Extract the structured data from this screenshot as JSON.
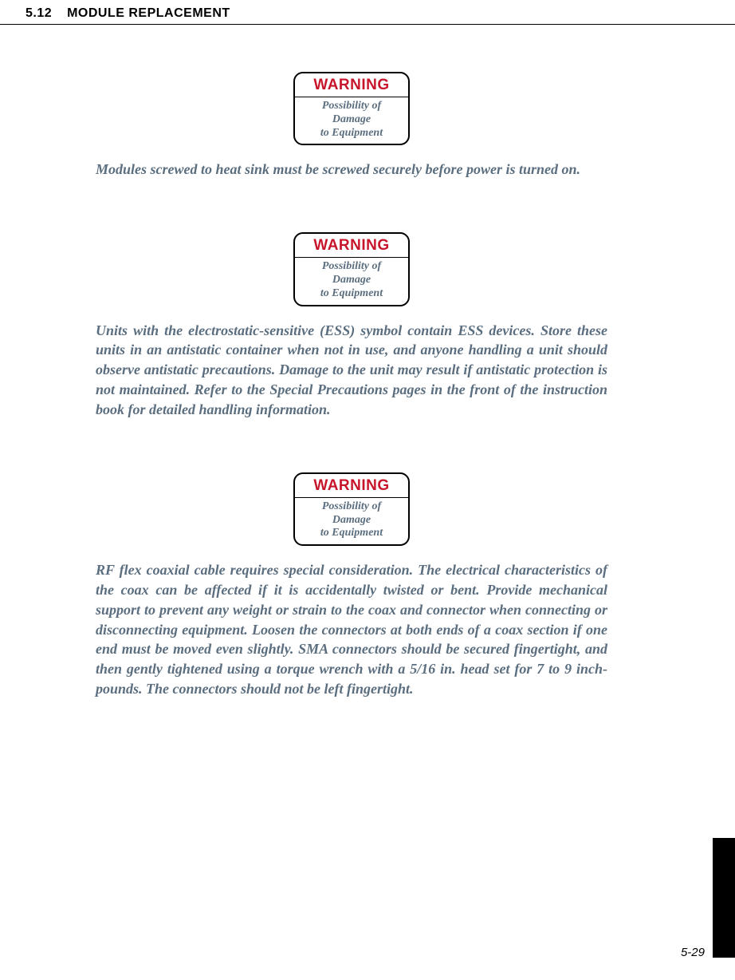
{
  "header": {
    "section_number": "5.12",
    "section_title": "MODULE REPLACEMENT",
    "fontsize": 16
  },
  "colors": {
    "text": "#000000",
    "warning_title": "#c7162b",
    "warning_body": "#5b6e7f",
    "paragraph": "#5b6e7f",
    "page_background": "#ffffff",
    "side_tab": "#000000",
    "rule": "#000000"
  },
  "warning_label": {
    "title": "WARNING",
    "body_line1": "Possibility of",
    "body_line2": "Damage",
    "body_line3": "to Equipment",
    "title_fontsize": 19,
    "body_fontsize": 14,
    "border_radius": 12,
    "border_width": 2
  },
  "paragraphs": {
    "p1": "Modules screwed to heat sink must be screwed securely before power is turned on.",
    "p2": "Units with the electrostatic-sensitive (ESS) symbol contain ESS devices. Store these units in an antistatic container when not in use, and anyone handling a unit should observe antistatic precautions. Damage to the unit may result if antistatic pro­tection is not maintained. Refer to the Special Precautions pages in the front of the instruction book for detailed han­dling information.",
    "p3": "RF flex coaxial cable requires special consideration. The elec­trical characteristics of the coax can be affected if it is acci­dentally twisted or bent. Provide mechanical support to prevent any weight or strain to the coax and connector when connecting or disconnecting equipment. Loosen the connectors at both ends of a coax section if one end must be moved even slightly. SMA connectors should be secured fin­gertight, and then gently tightened using a torque wrench with a 5/16 in. head set for 7 to 9 inch-pounds. The connec­tors should not be left fingertight.",
    "fontsize": 18,
    "line_height": 1.38
  },
  "footer": {
    "page_number": "5-29",
    "fontsize": 15
  }
}
